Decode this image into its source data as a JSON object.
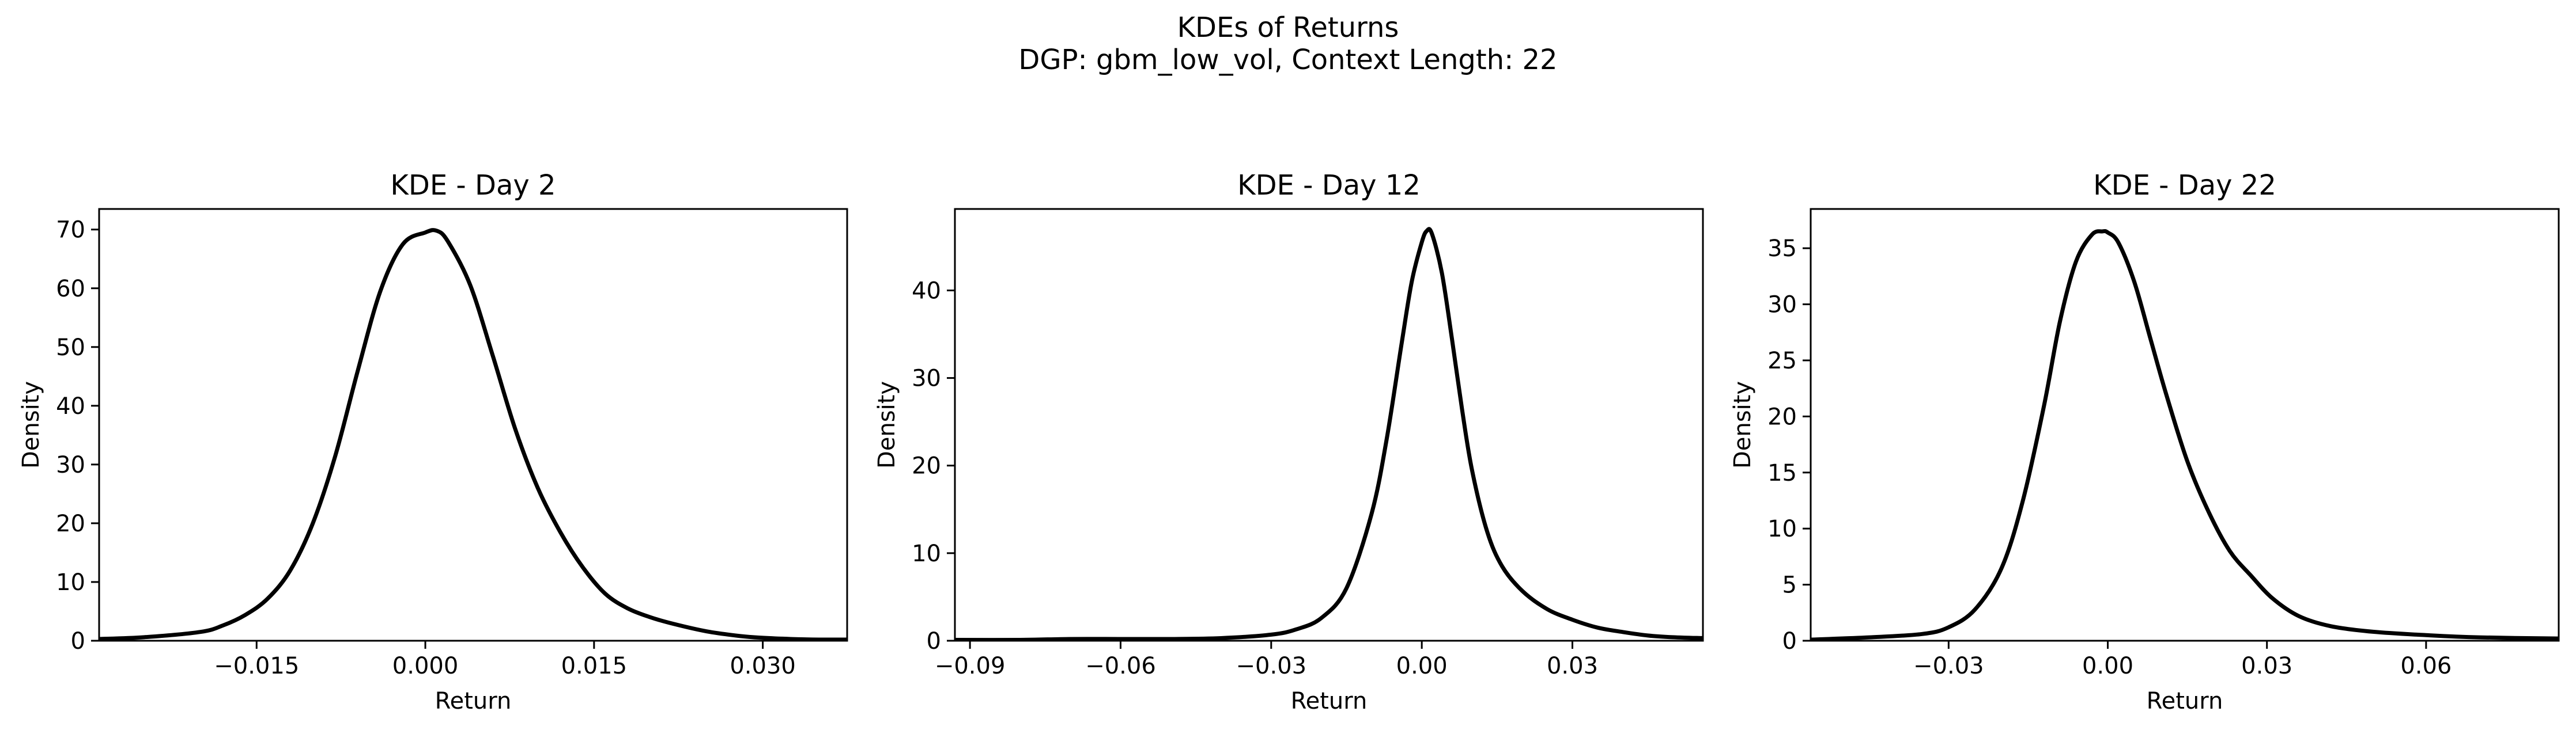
{
  "figure": {
    "title_line1": "KDEs of Returns",
    "title_line2": "DGP: gbm_low_vol, Context Length: 22"
  },
  "chart_data": [
    {
      "type": "line",
      "title": "KDE - Day 2",
      "xlabel": "Return",
      "ylabel": "Density",
      "xlim": [
        -0.029,
        0.0375
      ],
      "ylim": [
        0,
        73.5
      ],
      "xticks": [
        -0.015,
        0.0,
        0.015,
        0.03
      ],
      "xtick_labels": [
        "−0.015",
        "0.000",
        "0.015",
        "0.030"
      ],
      "yticks": [
        0,
        10,
        20,
        30,
        40,
        50,
        60,
        70
      ],
      "ytick_labels": [
        "0",
        "10",
        "20",
        "30",
        "40",
        "50",
        "60",
        "70"
      ],
      "grid": false,
      "line_color": "#000000",
      "series": [
        {
          "x": [
            -0.029,
            -0.025,
            -0.02,
            -0.018,
            -0.016,
            -0.014,
            -0.012,
            -0.01,
            -0.008,
            -0.006,
            -0.004,
            -0.002,
            0.0,
            0.001,
            0.002,
            0.004,
            0.006,
            0.008,
            0.01,
            0.012,
            0.014,
            0.016,
            0.018,
            0.02,
            0.022,
            0.025,
            0.028,
            0.03,
            0.0325,
            0.035,
            0.0375
          ],
          "y": [
            0.3,
            0.6,
            1.5,
            2.6,
            4.4,
            7.2,
            12.0,
            20.0,
            31.5,
            46.0,
            59.5,
            67.5,
            69.5,
            69.8,
            68.0,
            60.5,
            48.5,
            36.0,
            26.0,
            18.5,
            12.5,
            8.0,
            5.5,
            4.0,
            2.9,
            1.6,
            0.8,
            0.5,
            0.3,
            0.2,
            0.2
          ]
        }
      ]
    },
    {
      "type": "line",
      "title": "KDE - Day 12",
      "xlabel": "Return",
      "ylabel": "Density",
      "xlim": [
        -0.093,
        0.056
      ],
      "ylim": [
        0,
        49.3
      ],
      "xticks": [
        -0.09,
        -0.06,
        -0.03,
        0.0,
        0.03
      ],
      "xtick_labels": [
        "−0.09",
        "−0.06",
        "−0.03",
        "0.00",
        "0.03"
      ],
      "yticks": [
        0,
        10,
        20,
        30,
        40
      ],
      "ytick_labels": [
        "0",
        "10",
        "20",
        "30",
        "40"
      ],
      "grid": false,
      "line_color": "#000000",
      "series": [
        {
          "x": [
            -0.093,
            -0.08,
            -0.07,
            -0.06,
            -0.05,
            -0.04,
            -0.03,
            -0.025,
            -0.02,
            -0.015,
            -0.01,
            -0.007,
            -0.004,
            -0.002,
            0.0,
            0.001,
            0.002,
            0.004,
            0.006,
            0.008,
            0.01,
            0.013,
            0.016,
            0.02,
            0.025,
            0.03,
            0.035,
            0.04,
            0.045,
            0.05,
            0.056
          ],
          "y": [
            0.1,
            0.1,
            0.2,
            0.2,
            0.2,
            0.3,
            0.7,
            1.3,
            2.6,
            6.0,
            14.5,
            23.0,
            34.0,
            41.0,
            45.5,
            46.8,
            46.5,
            42.0,
            34.5,
            26.5,
            19.5,
            12.5,
            8.5,
            5.7,
            3.6,
            2.4,
            1.5,
            1.0,
            0.6,
            0.4,
            0.3
          ]
        }
      ]
    },
    {
      "type": "line",
      "title": "KDE - Day 22",
      "xlabel": "Return",
      "ylabel": "Density",
      "xlim": [
        -0.056,
        0.085
      ],
      "ylim": [
        0,
        38.5
      ],
      "xticks": [
        -0.03,
        0.0,
        0.03,
        0.06
      ],
      "xtick_labels": [
        "−0.03",
        "0.00",
        "0.03",
        "0.06"
      ],
      "yticks": [
        0,
        5,
        10,
        15,
        20,
        25,
        30,
        35
      ],
      "ytick_labels": [
        "0",
        "5",
        "10",
        "15",
        "20",
        "25",
        "30",
        "35"
      ],
      "grid": false,
      "line_color": "#000000",
      "series": [
        {
          "x": [
            -0.056,
            -0.045,
            -0.035,
            -0.03,
            -0.025,
            -0.02,
            -0.016,
            -0.012,
            -0.009,
            -0.006,
            -0.003,
            -0.001,
            0.0,
            0.002,
            0.005,
            0.008,
            0.011,
            0.015,
            0.019,
            0.023,
            0.027,
            0.031,
            0.036,
            0.042,
            0.05,
            0.06,
            0.07,
            0.085
          ],
          "y": [
            0.1,
            0.3,
            0.6,
            1.2,
            2.8,
            6.5,
            12.5,
            21.0,
            28.5,
            33.8,
            36.2,
            36.5,
            36.4,
            35.5,
            32.0,
            27.0,
            22.0,
            16.0,
            11.5,
            8.0,
            5.8,
            3.8,
            2.2,
            1.3,
            0.8,
            0.5,
            0.3,
            0.2
          ]
        }
      ]
    }
  ]
}
